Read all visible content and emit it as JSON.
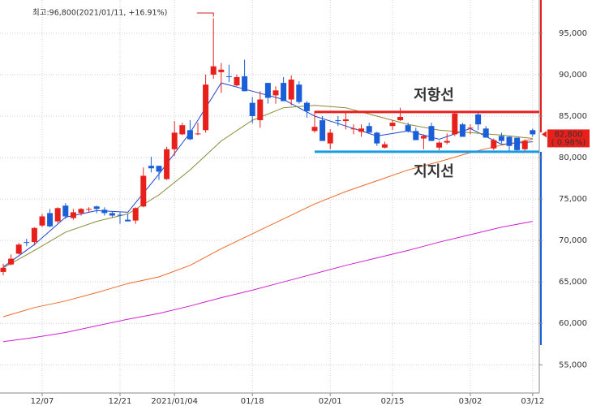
{
  "chart_data": {
    "type": "candlestick",
    "open": [
      66200,
      67100,
      68400,
      69800,
      69800,
      71800,
      73300,
      72300,
      74200,
      72700,
      73300,
      73800,
      74100,
      73700,
      73300,
      73100,
      72500,
      72400,
      74100,
      79000,
      79000,
      77400,
      81000,
      82800,
      83300,
      82800,
      83300,
      90000,
      90300,
      89800,
      88700,
      89800,
      86600,
      84500,
      89000,
      87500,
      89000,
      87000,
      88800,
      86600,
      83200,
      84500,
      81700,
      84500,
      84400,
      83500,
      83100,
      83800,
      83000,
      81200,
      83800,
      84500,
      83900,
      83200,
      82300,
      83800,
      81200,
      81800,
      82800,
      84000,
      83500,
      85200,
      83500,
      81100,
      82600,
      82500,
      82400,
      81000,
      83300
    ],
    "high": [
      67200,
      68300,
      69700,
      70200,
      71600,
      73200,
      73800,
      74000,
      74500,
      73800,
      73900,
      74000,
      74200,
      74000,
      73500,
      73400,
      73200,
      74000,
      78800,
      80100,
      79000,
      81300,
      84400,
      84200,
      84500,
      84200,
      90000,
      96800,
      91400,
      91200,
      90000,
      91800,
      87300,
      88000,
      89000,
      88600,
      89700,
      89900,
      89200,
      86800,
      85600,
      85000,
      83400,
      85000,
      85400,
      84000,
      84000,
      84200,
      83100,
      81900,
      84500,
      86000,
      84200,
      83600,
      82800,
      84200,
      82000,
      82900,
      85400,
      84200,
      84000,
      85400,
      83800,
      82300,
      83000,
      82600,
      82400,
      82200,
      83500
    ],
    "low": [
      65800,
      67000,
      68300,
      69300,
      69400,
      71600,
      71600,
      72100,
      72600,
      72500,
      73000,
      73400,
      73300,
      73000,
      72800,
      72000,
      72300,
      72000,
      74000,
      78200,
      77300,
      77300,
      80200,
      82700,
      82100,
      82700,
      83000,
      89500,
      87800,
      89100,
      88600,
      88000,
      84100,
      83600,
      86500,
      86500,
      86800,
      86300,
      86500,
      84800,
      83000,
      82000,
      81000,
      83800,
      83400,
      82800,
      82500,
      83000,
      81400,
      81100,
      83300,
      84400,
      83000,
      82100,
      81000,
      82000,
      80900,
      81600,
      82600,
      82500,
      82800,
      83300,
      82400,
      80900,
      81700,
      80800,
      80600,
      80800,
      82500
    ],
    "close": [
      66700,
      67800,
      69500,
      69700,
      71500,
      72900,
      71700,
      73900,
      72900,
      73400,
      73800,
      73800,
      73800,
      73300,
      73000,
      73000,
      72300,
      73900,
      77800,
      78700,
      78300,
      81000,
      83000,
      83900,
      82200,
      82900,
      88800,
      91000,
      90600,
      89700,
      89700,
      88000,
      85000,
      87000,
      87200,
      88100,
      86800,
      89400,
      86700,
      85600,
      83700,
      82000,
      83000,
      84400,
      84600,
      83500,
      83500,
      83000,
      81700,
      81600,
      84200,
      84900,
      83200,
      82100,
      82600,
      82000,
      81800,
      82000,
      85300,
      82500,
      83600,
      84000,
      82400,
      82100,
      82000,
      81400,
      80900,
      82000,
      82800
    ],
    "up_color": "#e8201c",
    "down_color": "#1a5fd8",
    "series": [
      {
        "color": "#2244cc",
        "x": [
          0,
          4,
          8,
          12,
          16,
          20,
          24,
          28,
          32,
          36,
          40,
          44,
          48,
          52,
          56,
          60,
          64,
          68
        ],
        "values": [
          66800,
          69500,
          72800,
          73600,
          73400,
          78000,
          83000,
          89000,
          88000,
          87000,
          85000,
          83800,
          82600,
          83200,
          82200,
          83500,
          81600,
          81900
        ]
      },
      {
        "color": "#8a8a3a",
        "x": [
          0,
          4,
          8,
          12,
          16,
          20,
          24,
          28,
          32,
          36,
          40,
          44,
          48,
          52,
          56,
          60,
          64,
          68
        ],
        "values": [
          66700,
          68800,
          71000,
          72300,
          73200,
          75500,
          78500,
          82000,
          84500,
          86000,
          86300,
          86000,
          85000,
          84000,
          83300,
          83000,
          82700,
          82300
        ]
      },
      {
        "color": "#ee6a2a",
        "x": [
          0,
          4,
          8,
          12,
          16,
          20,
          24,
          28,
          32,
          36,
          40,
          44,
          48,
          52,
          56,
          60,
          64,
          68
        ],
        "values": [
          60800,
          61900,
          62700,
          63700,
          64800,
          65600,
          67000,
          69000,
          70800,
          72600,
          74400,
          75900,
          77200,
          78500,
          79500,
          80600,
          81500,
          82200
        ]
      },
      {
        "color": "#d020d0",
        "x": [
          0,
          4,
          8,
          12,
          16,
          20,
          24,
          28,
          32,
          36,
          40,
          44,
          48,
          52,
          56,
          60,
          64,
          68
        ],
        "values": [
          57800,
          58300,
          58900,
          59700,
          60500,
          61200,
          62100,
          63100,
          64000,
          65000,
          66000,
          67000,
          67900,
          68800,
          69800,
          70700,
          71600,
          72300
        ]
      }
    ],
    "xticks": [
      {
        "value": 5,
        "label": "12/07"
      },
      {
        "value": 15,
        "label": "12/21"
      },
      {
        "value": 22,
        "label": "2021/01/04"
      },
      {
        "value": 32,
        "label": "01/18"
      },
      {
        "value": 42,
        "label": "02/01"
      },
      {
        "value": 50,
        "label": "02/15"
      },
      {
        "value": 60,
        "label": "03/02"
      },
      {
        "value": 68,
        "label": "03/12"
      }
    ],
    "ylim": [
      51600,
      99000
    ],
    "yticks": [
      {
        "value": 55000,
        "label": "55,000"
      },
      {
        "value": 60000,
        "label": "60,000"
      },
      {
        "value": 65000,
        "label": "65,000"
      },
      {
        "value": 70000,
        "label": "70,000"
      },
      {
        "value": 75000,
        "label": "75,000"
      },
      {
        "value": 80000,
        "label": "80,000"
      },
      {
        "value": 85000,
        "label": "85,000"
      },
      {
        "value": 90000,
        "label": "90,000"
      },
      {
        "value": 95000,
        "label": "95,000"
      }
    ],
    "grid": true,
    "max_annotation": "최고:96,800(2021/01/11, +16.91%)",
    "resistance": {
      "label": "저항선",
      "value": 85500,
      "color": "#e8201c"
    },
    "support": {
      "label": "지지선",
      "value": 80700,
      "color": "#1a9ae0"
    },
    "last_price": {
      "value": 82800,
      "label": "82,800"
    },
    "last_change": {
      "value": 0.98,
      "label": "( 0.98%)"
    }
  }
}
